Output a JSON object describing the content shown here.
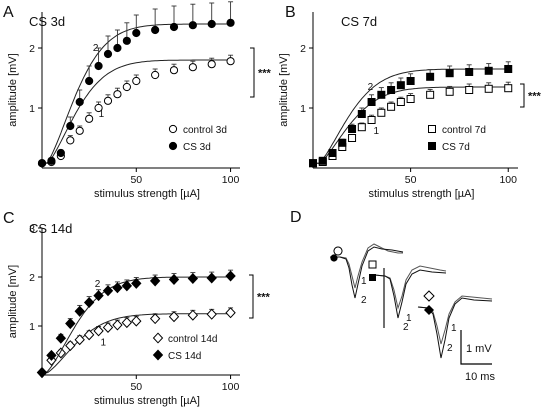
{
  "colors": {
    "open_marker": "#ffffff",
    "filled_marker": "#000000",
    "fit_line": "#222222",
    "axis": "#000000",
    "trace": "#333333"
  },
  "chart_data": [
    {
      "id": "A",
      "type": "scatter",
      "panel_letter": "A",
      "title": "CS 3d",
      "xlabel": "stimulus strength [µA]",
      "ylabel": "amplitude [mV]",
      "xlim": [
        0,
        105
      ],
      "ylim": [
        0,
        2.6
      ],
      "xticks": [
        "50",
        "100"
      ],
      "yticks": [
        "1",
        "2"
      ],
      "marker": "circle",
      "significance": "***",
      "annotations": [
        {
          "text": "2",
          "x": 27,
          "y": 1.95
        },
        {
          "text": "1",
          "x": 30,
          "y": 0.85
        }
      ],
      "series": [
        {
          "name": "control 3d",
          "fill": "open",
          "x": [
            0,
            5,
            10,
            15,
            20,
            25,
            30,
            35,
            40,
            45,
            50,
            60,
            70,
            80,
            90,
            100
          ],
          "y": [
            0.08,
            0.1,
            0.2,
            0.46,
            0.62,
            0.82,
            1.0,
            1.12,
            1.23,
            1.35,
            1.45,
            1.55,
            1.63,
            1.68,
            1.73,
            1.78
          ],
          "err": [
            0.01,
            0.02,
            0.04,
            0.08,
            0.08,
            0.1,
            0.1,
            0.1,
            0.1,
            0.1,
            0.1,
            0.1,
            0.1,
            0.1,
            0.1,
            0.1
          ],
          "fit_ymax": 1.8
        },
        {
          "name": "CS 3d",
          "fill": "filled",
          "x": [
            0,
            5,
            10,
            15,
            20,
            25,
            30,
            35,
            40,
            45,
            50,
            60,
            70,
            80,
            90,
            100
          ],
          "y": [
            0.08,
            0.12,
            0.25,
            0.7,
            1.1,
            1.45,
            1.7,
            1.9,
            2.0,
            2.12,
            2.25,
            2.3,
            2.35,
            2.38,
            2.4,
            2.42
          ],
          "err": [
            0.01,
            0.02,
            0.05,
            0.15,
            0.2,
            0.25,
            0.3,
            0.3,
            0.3,
            0.3,
            0.3,
            0.35,
            0.35,
            0.35,
            0.35,
            0.35
          ],
          "fit_ymax": 2.4
        }
      ]
    },
    {
      "id": "B",
      "type": "scatter",
      "panel_letter": "B",
      "title": "CS 7d",
      "xlabel": "stimulus strength [µA]",
      "ylabel": "amplitude [mV]",
      "xlim": [
        0,
        105
      ],
      "ylim": [
        0,
        2.6
      ],
      "xticks": [
        "50",
        "100"
      ],
      "yticks": [
        "1",
        "2"
      ],
      "marker": "square",
      "significance": "***",
      "annotations": [
        {
          "text": "2",
          "x": 28,
          "y": 1.3
        },
        {
          "text": "1",
          "x": 31,
          "y": 0.57
        }
      ],
      "series": [
        {
          "name": "control 7d",
          "fill": "open",
          "x": [
            0,
            5,
            10,
            15,
            20,
            25,
            30,
            35,
            40,
            45,
            50,
            60,
            70,
            80,
            90,
            100
          ],
          "y": [
            0.08,
            0.1,
            0.2,
            0.35,
            0.5,
            0.68,
            0.8,
            0.92,
            1.02,
            1.1,
            1.15,
            1.22,
            1.27,
            1.3,
            1.32,
            1.33
          ],
          "err": [
            0.01,
            0.02,
            0.03,
            0.05,
            0.06,
            0.07,
            0.08,
            0.08,
            0.08,
            0.08,
            0.09,
            0.09,
            0.09,
            0.1,
            0.1,
            0.1
          ],
          "fit_ymax": 1.35
        },
        {
          "name": "CS 7d",
          "fill": "filled",
          "x": [
            0,
            5,
            10,
            15,
            20,
            25,
            30,
            35,
            40,
            45,
            50,
            60,
            70,
            80,
            90,
            100
          ],
          "y": [
            0.08,
            0.12,
            0.25,
            0.42,
            0.65,
            0.9,
            1.1,
            1.22,
            1.3,
            1.38,
            1.45,
            1.52,
            1.58,
            1.6,
            1.62,
            1.65
          ],
          "err": [
            0.01,
            0.02,
            0.04,
            0.06,
            0.08,
            0.1,
            0.12,
            0.12,
            0.12,
            0.12,
            0.12,
            0.12,
            0.12,
            0.12,
            0.12,
            0.12
          ],
          "fit_ymax": 1.65
        }
      ]
    },
    {
      "id": "C",
      "type": "scatter",
      "panel_letter": "C",
      "title": "CS 14d",
      "xlabel": "stimulus strength [µA]",
      "ylabel": "amplitude [mV]",
      "xlim": [
        0,
        105
      ],
      "ylim": [
        0,
        3
      ],
      "xticks": [
        "50",
        "100"
      ],
      "yticks": [
        "1",
        "2",
        "3"
      ],
      "marker": "diamond",
      "significance": "***",
      "annotations": [
        {
          "text": "2",
          "x": 28,
          "y": 1.8
        },
        {
          "text": "1",
          "x": 31,
          "y": 0.6
        }
      ],
      "series": [
        {
          "name": "control 14d",
          "fill": "open",
          "x": [
            0,
            5,
            10,
            15,
            20,
            25,
            30,
            35,
            40,
            45,
            50,
            60,
            70,
            80,
            90,
            100
          ],
          "y": [
            0.05,
            0.3,
            0.45,
            0.6,
            0.72,
            0.82,
            0.9,
            0.97,
            1.02,
            1.07,
            1.1,
            1.15,
            1.19,
            1.22,
            1.24,
            1.27
          ],
          "err": [
            0.01,
            0.04,
            0.06,
            0.07,
            0.08,
            0.08,
            0.09,
            0.09,
            0.1,
            0.1,
            0.1,
            0.1,
            0.1,
            0.1,
            0.1,
            0.1
          ],
          "fit_ymax": 1.25
        },
        {
          "name": "CS 14d",
          "fill": "filled",
          "x": [
            0,
            5,
            10,
            15,
            20,
            25,
            30,
            35,
            40,
            45,
            50,
            60,
            70,
            80,
            90,
            100
          ],
          "y": [
            0.05,
            0.4,
            0.75,
            1.05,
            1.3,
            1.48,
            1.62,
            1.72,
            1.78,
            1.82,
            1.87,
            1.92,
            1.95,
            1.97,
            1.98,
            2.02
          ],
          "err": [
            0.01,
            0.05,
            0.08,
            0.1,
            0.12,
            0.12,
            0.12,
            0.12,
            0.12,
            0.12,
            0.12,
            0.12,
            0.12,
            0.12,
            0.12,
            0.12
          ],
          "fit_ymax": 2.0
        }
      ]
    }
  ],
  "panel_d": {
    "letter": "D",
    "scale_amp": "1 mV",
    "scale_time": "10 ms",
    "trace_labels": [
      "1",
      "2",
      "1",
      "2",
      "1",
      "2"
    ]
  }
}
